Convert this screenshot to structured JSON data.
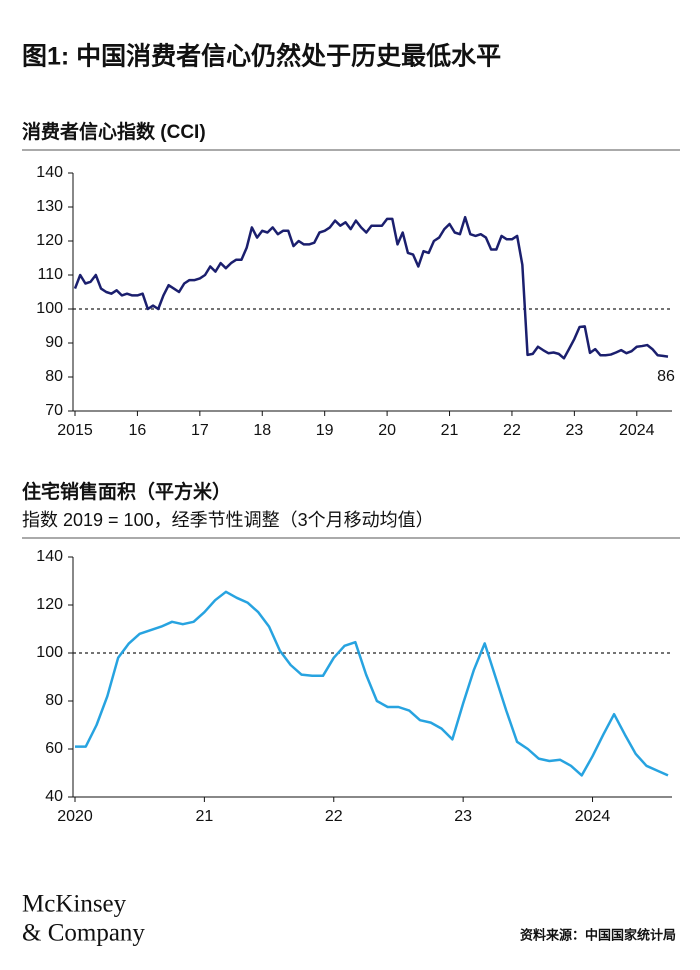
{
  "title": "图1: 中国消费者信心仍然处于历史最低水平",
  "chart_data": [
    {
      "type": "line",
      "title": "消费者信心指数 (CCI)",
      "categories": [
        "2015",
        null,
        null,
        null,
        null,
        null,
        null,
        null,
        null,
        null,
        null,
        null,
        "16",
        null,
        null,
        null,
        null,
        null,
        null,
        null,
        null,
        null,
        null,
        null,
        "17",
        null,
        null,
        null,
        null,
        null,
        null,
        null,
        null,
        null,
        null,
        null,
        "18",
        null,
        null,
        null,
        null,
        null,
        null,
        null,
        null,
        null,
        null,
        null,
        "19",
        null,
        null,
        null,
        null,
        null,
        null,
        null,
        null,
        null,
        null,
        null,
        "20",
        null,
        null,
        null,
        null,
        null,
        null,
        null,
        null,
        null,
        null,
        null,
        "21",
        null,
        null,
        null,
        null,
        null,
        null,
        null,
        null,
        null,
        null,
        null,
        "22",
        null,
        null,
        null,
        null,
        null,
        null,
        null,
        null,
        null,
        null,
        null,
        "23",
        null,
        null,
        null,
        null,
        null,
        null,
        null,
        null,
        null,
        null,
        null,
        "2024",
        null,
        null,
        null,
        null,
        null,
        null
      ],
      "series": [
        {
          "color": "#1b1f6e",
          "values": [
            106,
            110,
            107.5,
            108,
            110,
            106,
            105,
            104.5,
            105.5,
            104,
            104.5,
            104,
            104,
            104.5,
            100,
            101,
            100,
            104,
            107,
            106,
            105,
            107.5,
            108.5,
            108.5,
            109,
            110,
            112.5,
            111,
            113.5,
            112,
            113.5,
            114.5,
            114.5,
            118,
            124,
            121,
            123,
            122.5,
            124,
            122,
            123,
            123,
            118.5,
            120,
            119,
            119,
            119.5,
            122.5,
            123,
            124,
            126,
            124.5,
            125.5,
            123.5,
            126,
            124,
            122.5,
            124.5,
            124.5,
            124.5,
            126.5,
            126.5,
            119,
            122.5,
            116.5,
            116,
            112.5,
            117,
            116.5,
            120,
            121,
            123.5,
            125,
            122.5,
            122,
            127,
            122,
            121.5,
            122,
            121,
            117.5,
            117.5,
            121.5,
            120.5,
            120.5,
            121.5,
            113,
            86.5,
            86.8,
            88.9,
            87.9,
            87,
            87.2,
            86.8,
            85.5,
            88.3,
            91.2,
            94.7,
            94.9,
            87.1,
            88.2,
            86.4,
            86.4,
            86.6,
            87.2,
            87.9,
            87,
            87.6,
            88.9,
            89.1,
            89.4,
            88.2,
            86.4,
            86.2,
            86
          ]
        }
      ],
      "ylim": [
        70,
        140
      ],
      "yticks": [
        70,
        80,
        90,
        100,
        110,
        120,
        130,
        140
      ],
      "reference_line": 100,
      "label_last": true
    },
    {
      "type": "line",
      "title": "住宅销售面积（平方米）",
      "subtitle": "指数 2019 = 100，经季节性调整（3个月移动均值）",
      "categories": [
        "2020",
        null,
        null,
        null,
        null,
        null,
        null,
        null,
        null,
        null,
        null,
        null,
        "21",
        null,
        null,
        null,
        null,
        null,
        null,
        null,
        null,
        null,
        null,
        null,
        "22",
        null,
        null,
        null,
        null,
        null,
        null,
        null,
        null,
        null,
        null,
        null,
        "23",
        null,
        null,
        null,
        null,
        null,
        null,
        null,
        null,
        null,
        null,
        null,
        "2024",
        null,
        null,
        null,
        null,
        null,
        null,
        null
      ],
      "series": [
        {
          "color": "#27a3e0",
          "values": [
            61,
            61,
            70,
            82,
            98,
            104,
            108,
            109.5,
            111,
            113,
            112,
            113,
            117,
            122,
            125.5,
            123,
            121,
            117,
            111,
            101,
            95,
            91,
            90.5,
            90.5,
            98,
            103,
            104.5,
            91,
            80,
            77.5,
            77.5,
            76,
            72,
            71,
            68.5,
            64,
            79,
            93,
            104,
            90,
            76,
            63,
            60,
            56,
            55,
            55.5,
            53,
            49,
            57,
            66,
            74.5,
            66,
            58,
            53,
            51,
            49
          ]
        }
      ],
      "ylim": [
        40,
        140
      ],
      "yticks": [
        40,
        60,
        80,
        100,
        120,
        140
      ],
      "reference_line": 100,
      "label_last": false
    }
  ],
  "footer": {
    "logo_line1": "McKinsey",
    "logo_line2": "& Company",
    "source": "资料来源：中国国家统计局"
  }
}
